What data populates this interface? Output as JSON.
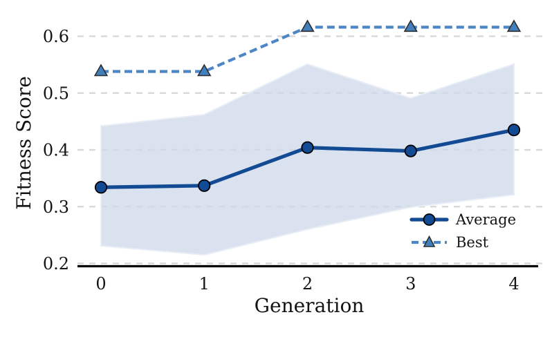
{
  "chart_data": {
    "type": "line",
    "title": "",
    "xlabel": "Generation",
    "ylabel": "Fitness Score",
    "x": [
      0,
      1,
      2,
      3,
      4
    ],
    "xtick_labels": [
      "0",
      "1",
      "2",
      "3",
      "4"
    ],
    "ytick_labels": [
      "0.2",
      "0.3",
      "0.4",
      "0.5",
      "0.6"
    ],
    "ytick_values": [
      0.2,
      0.3,
      0.4,
      0.5,
      0.6
    ],
    "ylim": [
      0.2,
      0.64
    ],
    "grid": "horizontal dashed gridlines",
    "legend_position": "lower right inside plot, no frame",
    "series": [
      {
        "name": "Average",
        "values": [
          0.334,
          0.337,
          0.404,
          0.398,
          0.435
        ],
        "color": "#134a94",
        "line_style": "solid",
        "marker": "circle",
        "marker_fill": "#134a94",
        "marker_edge": "#000000"
      },
      {
        "name": "Best",
        "values": [
          0.538,
          0.538,
          0.616,
          0.616,
          0.616
        ],
        "color": "#4d86c4",
        "line_style": "dashed",
        "marker": "triangle",
        "marker_fill": "#4280bd",
        "marker_edge": "#2d2d2d"
      }
    ],
    "band": {
      "belongs_to": "Average",
      "upper": [
        0.442,
        0.462,
        0.551,
        0.491,
        0.551
      ],
      "lower": [
        0.231,
        0.215,
        0.26,
        0.299,
        0.321
      ],
      "fill": "#cdd8ea",
      "edge": "#e9eef6",
      "opacity": 0.75
    }
  },
  "colors": {
    "background": "#ffffff",
    "gridline": "#d9d9d9",
    "axis_line": "#000000",
    "text": "#141414"
  }
}
